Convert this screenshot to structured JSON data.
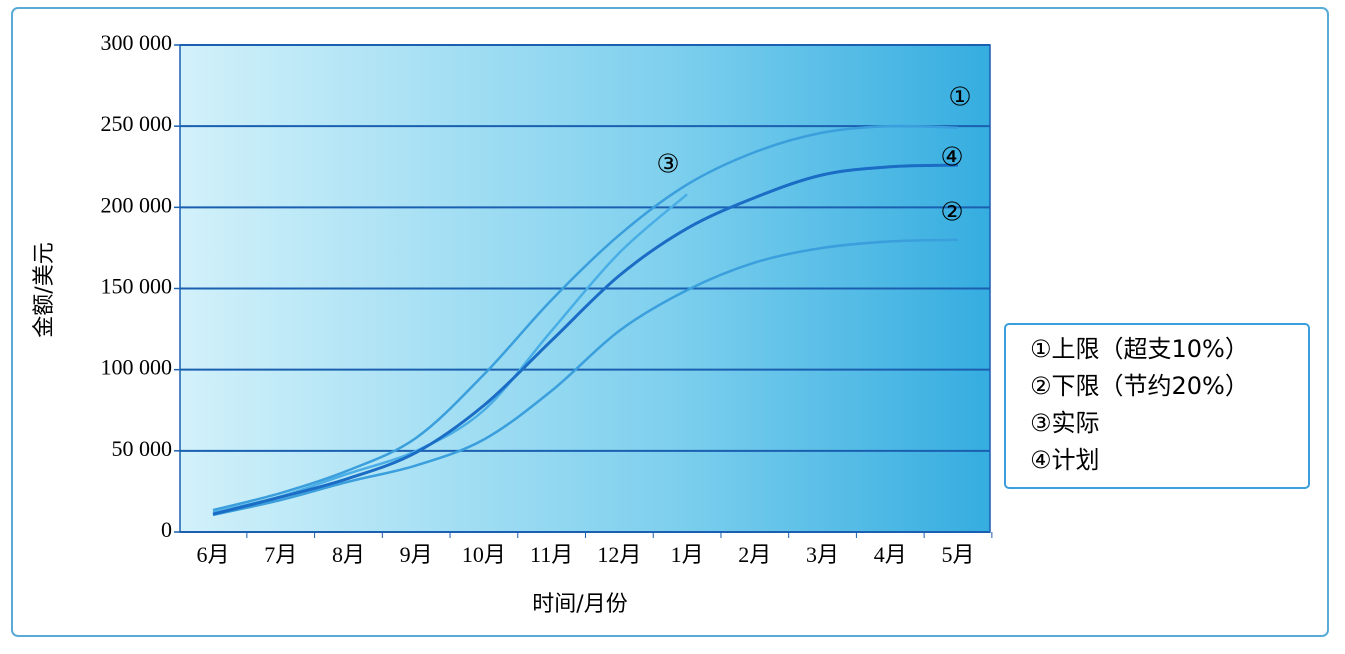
{
  "chart_data": {
    "type": "line",
    "xlabel": "时间/月份",
    "ylabel": "金额/美元",
    "categories": [
      "6月",
      "7月",
      "8月",
      "9月",
      "10月",
      "11月",
      "12月",
      "1月",
      "2月",
      "3月",
      "4月",
      "5月"
    ],
    "series": [
      {
        "name": "①上限（超支10%）",
        "color": "#3a9fdc",
        "values": [
          13500,
          24000,
          38000,
          58000,
          97000,
          143000,
          183000,
          214000,
          234000,
          246000,
          250000,
          249000
        ]
      },
      {
        "name": "②下限（节约20%）",
        "color": "#3a9fdc",
        "values": [
          10500,
          19700,
          31000,
          41000,
          57000,
          87000,
          124000,
          149000,
          166000,
          175000,
          179000,
          180000
        ]
      },
      {
        "name": "③实际",
        "color": "#4aaee6",
        "values": [
          12000,
          22000,
          36000,
          50000,
          75000,
          124000,
          172000,
          208000,
          null,
          null,
          null,
          null
        ]
      },
      {
        "name": "④计划",
        "color": "#1a6cc4",
        "values": [
          11000,
          21500,
          33000,
          49000,
          78000,
          118000,
          158000,
          187000,
          206000,
          220000,
          225000,
          226000
        ]
      }
    ],
    "annotations": [
      "①",
      "②",
      "③",
      "④"
    ],
    "ylim": [
      0,
      300000
    ],
    "yticks": [
      0,
      {
        "value": 50000,
        "label": "50 000"
      },
      {
        "value": 100000,
        "label": "100 000"
      },
      {
        "value": 150000,
        "label": "150 000"
      },
      {
        "value": 200000,
        "label": "200 000"
      },
      {
        "value": 250000,
        "label": "250 000"
      },
      {
        "value": 300000,
        "label": "300 000"
      }
    ],
    "grid": true
  }
}
